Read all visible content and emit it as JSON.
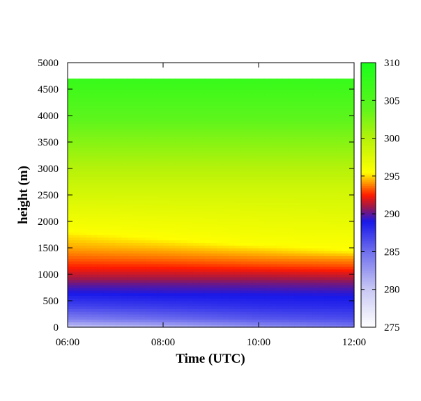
{
  "chart_data": {
    "type": "heatmap",
    "title": "",
    "xlabel": "Time (UTC)",
    "ylabel": "height (m)",
    "x_tick_labels": [
      "06:00",
      "08:00",
      "10:00",
      "12:00"
    ],
    "x_range": [
      "06:00",
      "12:00"
    ],
    "y_ticks": [
      0,
      500,
      1000,
      1500,
      2000,
      2500,
      3000,
      3500,
      4000,
      4500,
      5000
    ],
    "ylim": [
      0,
      5000
    ],
    "data_top_height": 4700,
    "colorbar": {
      "range": [
        275,
        310
      ],
      "ticks": [
        275,
        280,
        285,
        290,
        295,
        300,
        305,
        310
      ],
      "colormap": [
        {
          "value": 275,
          "color": "#ffffff"
        },
        {
          "value": 280,
          "color": "#c9c9f5"
        },
        {
          "value": 285,
          "color": "#7070ee"
        },
        {
          "value": 289,
          "color": "#1818ea"
        },
        {
          "value": 291,
          "color": "#a01848"
        },
        {
          "value": 292.5,
          "color": "#ff1a00"
        },
        {
          "value": 294,
          "color": "#ff8c00"
        },
        {
          "value": 295.5,
          "color": "#ffff00"
        },
        {
          "value": 300,
          "color": "#b6f20a"
        },
        {
          "value": 304,
          "color": "#5ef51c"
        },
        {
          "value": 310,
          "color": "#1aff1a"
        }
      ]
    },
    "profiles": [
      {
        "time": "06:00",
        "heights": [
          0,
          150,
          400,
          650,
          800,
          950,
          1100,
          1300,
          1500,
          1750,
          1850,
          2100,
          2600,
          3100,
          3600,
          4200,
          4700
        ],
        "values": [
          280,
          284,
          287,
          289,
          290,
          291.2,
          292.3,
          293.4,
          294.3,
          295.2,
          295.8,
          296.6,
          298.4,
          300.4,
          302.6,
          305.2,
          307.5
        ]
      },
      {
        "time": "08:00",
        "heights": [
          0,
          150,
          400,
          650,
          800,
          950,
          1100,
          1300,
          1500,
          1700,
          2100,
          2600,
          3100,
          3600,
          4200,
          4700
        ],
        "values": [
          281,
          285,
          287.5,
          289.2,
          290,
          291.2,
          292.3,
          293.6,
          294.6,
          295.6,
          296.8,
          298.4,
          300.4,
          302.6,
          305.2,
          307.5
        ]
      },
      {
        "time": "10:00",
        "heights": [
          0,
          150,
          400,
          650,
          850,
          1000,
          1150,
          1300,
          1450,
          1600,
          2100,
          2600,
          3100,
          3600,
          4200,
          4700
        ],
        "values": [
          283,
          286,
          288,
          289.2,
          290.4,
          291.6,
          292.9,
          293.9,
          294.8,
          295.8,
          297,
          298.4,
          300.4,
          302.6,
          305.2,
          307.5
        ]
      },
      {
        "time": "12:00",
        "heights": [
          0,
          150,
          400,
          650,
          850,
          1000,
          1150,
          1300,
          1450,
          2100,
          2600,
          3100,
          3600,
          4200,
          4700
        ],
        "values": [
          284.5,
          286.5,
          288.2,
          289.3,
          290.5,
          291.8,
          293.1,
          294.1,
          295.5,
          297.2,
          298.4,
          300.4,
          302.6,
          305.2,
          307.5
        ]
      }
    ]
  }
}
